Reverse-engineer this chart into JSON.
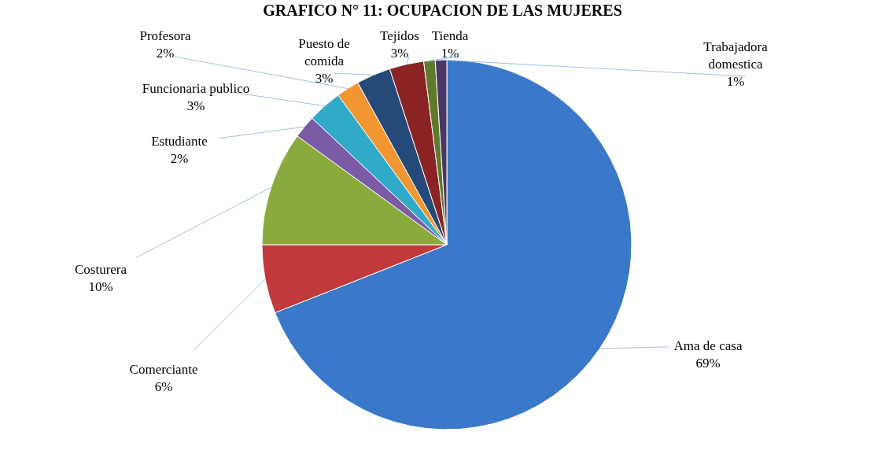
{
  "chart_data": {
    "type": "pie",
    "title": "GRAFICO N° 11: OCUPACION DE LAS MUJERES",
    "categories": [
      "Ama de casa",
      "Comerciante",
      "Costurera",
      "Estudiante",
      "Funcionaria publico",
      "Profesora",
      "Puesto de comida",
      "Tejidos",
      "Tienda",
      "Trabajadora domestica"
    ],
    "values": [
      69,
      6,
      10,
      2,
      3,
      2,
      3,
      3,
      1,
      1
    ],
    "colors": [
      "#3a78c9",
      "#c0393b",
      "#8aab3c",
      "#7b5aa6",
      "#31a9c8",
      "#f39530",
      "#254a7a",
      "#8a2424",
      "#5f7a2a",
      "#4a3765"
    ],
    "value_labels": [
      "69%",
      "6%",
      "10%",
      "2%",
      "3%",
      "2%",
      "3%",
      "3%",
      "1%",
      "1%"
    ]
  }
}
